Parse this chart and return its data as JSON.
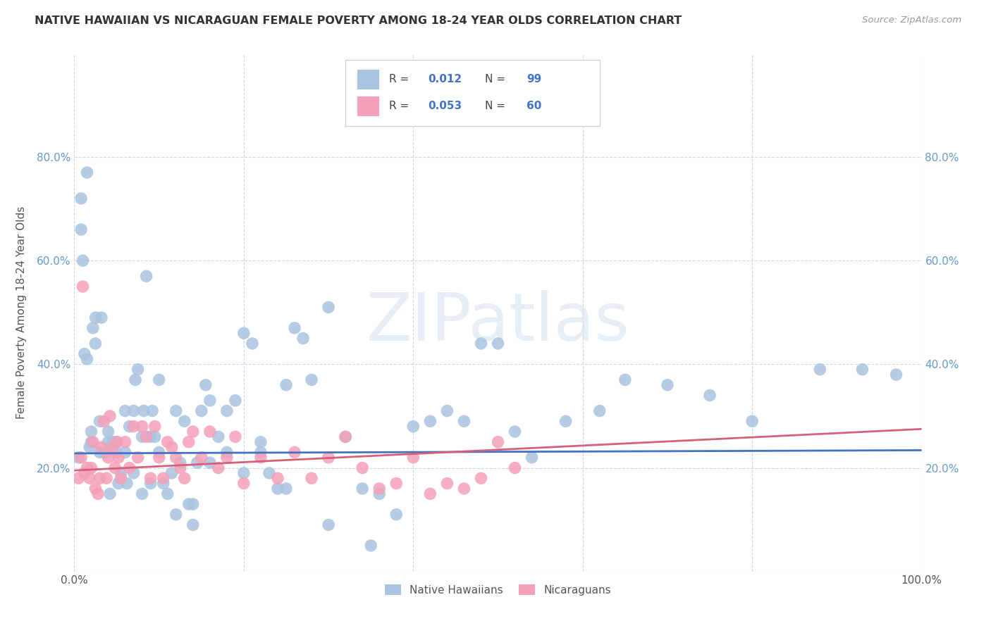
{
  "title": "NATIVE HAWAIIAN VS NICARAGUAN FEMALE POVERTY AMONG 18-24 YEAR OLDS CORRELATION CHART",
  "source": "Source: ZipAtlas.com",
  "ylabel": "Female Poverty Among 18-24 Year Olds",
  "xlim": [
    0.0,
    1.0
  ],
  "ylim": [
    0.0,
    1.0
  ],
  "color_blue": "#a8c4e0",
  "color_pink": "#f4a0b8",
  "line_blue": "#4472c4",
  "line_pink": "#d4607a",
  "line_dashed_color": "#b8cce4",
  "R_blue": 0.012,
  "N_blue": 99,
  "R_pink": 0.053,
  "N_pink": 60,
  "legend_label_blue": "Native Hawaiians",
  "legend_label_pink": "Nicaraguans",
  "watermark": "ZIPatlas",
  "blue_intercept": 0.228,
  "blue_slope": 0.006,
  "pink_intercept": 0.195,
  "pink_slope": 0.08,
  "blue_x": [
    0.005,
    0.008,
    0.01,
    0.012,
    0.015,
    0.018,
    0.02,
    0.022,
    0.025,
    0.025,
    0.03,
    0.032,
    0.035,
    0.038,
    0.04,
    0.042,
    0.045,
    0.05,
    0.052,
    0.055,
    0.06,
    0.062,
    0.065,
    0.07,
    0.072,
    0.075,
    0.08,
    0.082,
    0.085,
    0.09,
    0.092,
    0.095,
    0.1,
    0.105,
    0.11,
    0.115,
    0.12,
    0.125,
    0.13,
    0.135,
    0.14,
    0.145,
    0.15,
    0.155,
    0.16,
    0.17,
    0.18,
    0.19,
    0.2,
    0.21,
    0.22,
    0.23,
    0.24,
    0.25,
    0.26,
    0.27,
    0.28,
    0.3,
    0.32,
    0.34,
    0.36,
    0.38,
    0.4,
    0.42,
    0.44,
    0.46,
    0.48,
    0.5,
    0.52,
    0.54,
    0.58,
    0.62,
    0.65,
    0.7,
    0.75,
    0.8,
    0.88,
    0.93,
    0.97,
    0.008,
    0.015,
    0.02,
    0.03,
    0.04,
    0.05,
    0.06,
    0.07,
    0.08,
    0.09,
    0.1,
    0.12,
    0.14,
    0.16,
    0.18,
    0.2,
    0.22,
    0.25,
    0.3,
    0.35
  ],
  "blue_y": [
    0.22,
    0.66,
    0.6,
    0.42,
    0.41,
    0.24,
    0.25,
    0.47,
    0.49,
    0.44,
    0.29,
    0.49,
    0.23,
    0.23,
    0.25,
    0.15,
    0.25,
    0.23,
    0.17,
    0.19,
    0.23,
    0.17,
    0.28,
    0.31,
    0.37,
    0.39,
    0.26,
    0.31,
    0.57,
    0.26,
    0.31,
    0.26,
    0.23,
    0.17,
    0.15,
    0.19,
    0.31,
    0.21,
    0.29,
    0.13,
    0.09,
    0.21,
    0.31,
    0.36,
    0.33,
    0.26,
    0.31,
    0.33,
    0.46,
    0.44,
    0.23,
    0.19,
    0.16,
    0.36,
    0.47,
    0.45,
    0.37,
    0.51,
    0.26,
    0.16,
    0.15,
    0.11,
    0.28,
    0.29,
    0.31,
    0.29,
    0.44,
    0.44,
    0.27,
    0.22,
    0.29,
    0.31,
    0.37,
    0.36,
    0.34,
    0.29,
    0.39,
    0.39,
    0.38,
    0.72,
    0.77,
    0.27,
    0.23,
    0.27,
    0.25,
    0.31,
    0.19,
    0.15,
    0.17,
    0.37,
    0.11,
    0.13,
    0.21,
    0.23,
    0.19,
    0.25,
    0.16,
    0.09,
    0.05
  ],
  "pink_x": [
    0.005,
    0.008,
    0.01,
    0.012,
    0.015,
    0.018,
    0.02,
    0.022,
    0.025,
    0.028,
    0.03,
    0.032,
    0.035,
    0.038,
    0.04,
    0.042,
    0.045,
    0.048,
    0.05,
    0.052,
    0.055,
    0.06,
    0.065,
    0.07,
    0.075,
    0.08,
    0.085,
    0.09,
    0.095,
    0.1,
    0.105,
    0.11,
    0.115,
    0.12,
    0.125,
    0.13,
    0.135,
    0.14,
    0.15,
    0.16,
    0.17,
    0.18,
    0.19,
    0.2,
    0.22,
    0.24,
    0.26,
    0.28,
    0.3,
    0.32,
    0.34,
    0.36,
    0.38,
    0.4,
    0.42,
    0.44,
    0.46,
    0.48,
    0.5,
    0.52
  ],
  "pink_y": [
    0.18,
    0.22,
    0.55,
    0.19,
    0.2,
    0.18,
    0.2,
    0.25,
    0.16,
    0.15,
    0.18,
    0.24,
    0.29,
    0.18,
    0.22,
    0.3,
    0.24,
    0.2,
    0.25,
    0.22,
    0.18,
    0.25,
    0.2,
    0.28,
    0.22,
    0.28,
    0.26,
    0.18,
    0.28,
    0.22,
    0.18,
    0.25,
    0.24,
    0.22,
    0.2,
    0.18,
    0.25,
    0.27,
    0.22,
    0.27,
    0.2,
    0.22,
    0.26,
    0.17,
    0.22,
    0.18,
    0.23,
    0.18,
    0.22,
    0.26,
    0.2,
    0.16,
    0.17,
    0.22,
    0.15,
    0.17,
    0.16,
    0.18,
    0.25,
    0.2
  ]
}
